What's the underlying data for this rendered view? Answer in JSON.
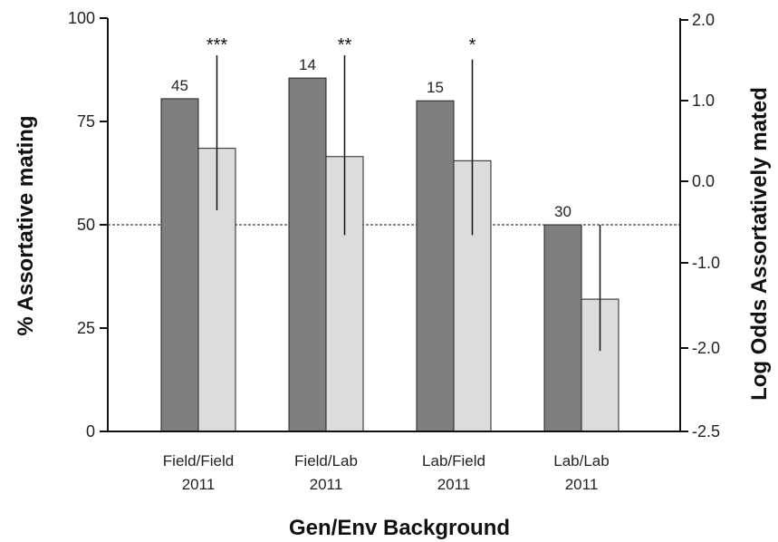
{
  "chart_data": {
    "type": "bar",
    "xlabel": "Gen/Env Background",
    "ylabel": "% Assortative  mating",
    "y2label": "Log Odds Assortatively mated",
    "ylim": [
      0,
      100
    ],
    "yticks": [
      "0",
      "25",
      "50",
      "75",
      "100"
    ],
    "y2ticks": [
      "-2.5",
      "-2.0",
      "-1.0",
      "0.0",
      "1.0",
      "2.0"
    ],
    "reference_line": 50,
    "categories": [
      {
        "line1": "Field/Field",
        "line2": "2011"
      },
      {
        "line1": "Field/Lab",
        "line2": "2011"
      },
      {
        "line1": "Lab/Field",
        "line2": "2011"
      },
      {
        "line1": "Lab/Lab",
        "line2": "2011"
      }
    ],
    "series": [
      {
        "values": [
          80.5,
          85.5,
          80,
          50
        ],
        "color": "#7f7f7f"
      },
      {
        "values": [
          68.5,
          66.5,
          65.5,
          32
        ],
        "color": "#dcdcdc",
        "error_bars": [
          [
            53.5,
            91
          ],
          [
            47.5,
            91
          ],
          [
            47.5,
            90
          ],
          [
            19.5,
            50
          ]
        ]
      }
    ],
    "n_labels": [
      "45",
      "14",
      "15",
      "30"
    ],
    "significance": [
      "***",
      "**",
      "*",
      ""
    ]
  }
}
